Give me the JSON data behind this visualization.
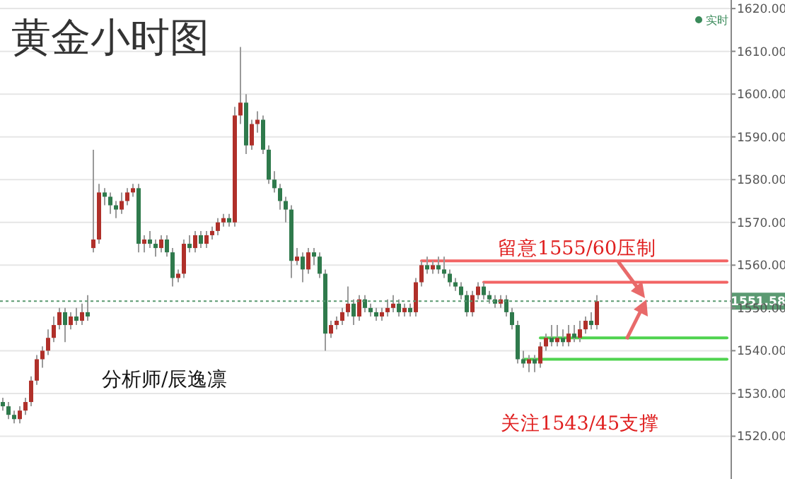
{
  "chart_data": {
    "type": "candlestick",
    "title": "黄金小时图",
    "categories": [
      null,
      null,
      null,
      null,
      null,
      null,
      null,
      null,
      null,
      null,
      null,
      null,
      null,
      null,
      null,
      null,
      null,
      null,
      null,
      null,
      null,
      null,
      null,
      null,
      null,
      null,
      null,
      null,
      null,
      null,
      null,
      null,
      null,
      null,
      null,
      null,
      null,
      null,
      null,
      null,
      null,
      null,
      null,
      null,
      null,
      null,
      null,
      null,
      null,
      null,
      null,
      null,
      null,
      null,
      null,
      null,
      null,
      null,
      null,
      null,
      null,
      null,
      null,
      null,
      null,
      null,
      null,
      null,
      null,
      null,
      null,
      null,
      null,
      null,
      null,
      null,
      null,
      null,
      null,
      null,
      null,
      null,
      null,
      null,
      null,
      null,
      null,
      null,
      null,
      null,
      null,
      null,
      null,
      null,
      null,
      null,
      null,
      null,
      null,
      null,
      null,
      null,
      null,
      null,
      null,
      null,
      null,
      null,
      null,
      null,
      null,
      null,
      null,
      null,
      null,
      null,
      null,
      null,
      null,
      null,
      null,
      null,
      null,
      null,
      null,
      null,
      null,
      null,
      null
    ],
    "ohlc": [
      [
        1528,
        1529,
        1526,
        1527
      ],
      [
        1527,
        1528,
        1524,
        1525
      ],
      [
        1525,
        1526,
        1523,
        1524
      ],
      [
        1524,
        1527,
        1523,
        1526
      ],
      [
        1526,
        1529,
        1525,
        1528
      ],
      [
        1528,
        1534,
        1527,
        1533
      ],
      [
        1533,
        1539,
        1532,
        1538
      ],
      [
        1538,
        1541,
        1536,
        1540
      ],
      [
        1540,
        1545,
        1539,
        1543
      ],
      [
        1543,
        1548,
        1542,
        1546
      ],
      [
        1546,
        1550,
        1545,
        1549
      ],
      [
        1549,
        1550,
        1542,
        1546
      ],
      [
        1546,
        1549,
        1545,
        1548
      ],
      [
        1548,
        1550,
        1546,
        1547
      ],
      [
        1547,
        1551,
        1546,
        1549
      ],
      [
        1549,
        1553,
        1547,
        1548
      ],
      [
        1564,
        1587,
        1563,
        1566
      ],
      [
        1566,
        1579,
        1565,
        1577
      ],
      [
        1577,
        1578,
        1574,
        1576
      ],
      [
        1576,
        1577,
        1572,
        1574
      ],
      [
        1574,
        1575,
        1571,
        1573
      ],
      [
        1573,
        1577,
        1572,
        1575
      ],
      [
        1575,
        1578,
        1574,
        1577
      ],
      [
        1577,
        1579,
        1576,
        1578
      ],
      [
        1578,
        1579,
        1563,
        1565
      ],
      [
        1565,
        1567,
        1563,
        1566
      ],
      [
        1566,
        1568,
        1564,
        1565
      ],
      [
        1565,
        1566,
        1562,
        1564
      ],
      [
        1564,
        1567,
        1563,
        1566
      ],
      [
        1566,
        1567,
        1562,
        1563
      ],
      [
        1563,
        1564,
        1555,
        1557
      ],
      [
        1557,
        1559,
        1556,
        1558
      ],
      [
        1558,
        1566,
        1557,
        1565
      ],
      [
        1565,
        1567,
        1563,
        1564
      ],
      [
        1564,
        1568,
        1563,
        1567
      ],
      [
        1567,
        1568,
        1564,
        1565
      ],
      [
        1565,
        1568,
        1564,
        1567
      ],
      [
        1567,
        1569,
        1566,
        1568
      ],
      [
        1568,
        1571,
        1567,
        1570
      ],
      [
        1570,
        1572,
        1569,
        1571
      ],
      [
        1571,
        1572,
        1569,
        1570
      ],
      [
        1570,
        1597,
        1569,
        1595
      ],
      [
        1595,
        1611,
        1593,
        1598
      ],
      [
        1598,
        1600,
        1586,
        1588
      ],
      [
        1588,
        1594,
        1587,
        1593
      ],
      [
        1593,
        1596,
        1591,
        1594
      ],
      [
        1594,
        1595,
        1586,
        1587
      ],
      [
        1587,
        1588,
        1579,
        1580
      ],
      [
        1580,
        1582,
        1577,
        1578
      ],
      [
        1578,
        1579,
        1573,
        1575
      ],
      [
        1575,
        1576,
        1570,
        1573
      ],
      [
        1573,
        1574,
        1557,
        1561
      ],
      [
        1561,
        1564,
        1560,
        1562
      ],
      [
        1562,
        1563,
        1556,
        1559
      ],
      [
        1559,
        1564,
        1558,
        1563
      ],
      [
        1563,
        1564,
        1560,
        1562
      ],
      [
        1562,
        1563,
        1557,
        1558
      ],
      [
        1558,
        1559,
        1540,
        1544
      ],
      [
        1544,
        1547,
        1543,
        1546
      ],
      [
        1546,
        1548,
        1545,
        1547
      ],
      [
        1547,
        1550,
        1546,
        1549
      ],
      [
        1549,
        1555,
        1548,
        1551
      ],
      [
        1551,
        1552,
        1546,
        1548
      ],
      [
        1548,
        1553,
        1547,
        1552
      ],
      [
        1552,
        1553,
        1549,
        1550
      ],
      [
        1550,
        1551,
        1548,
        1549
      ],
      [
        1549,
        1550,
        1547,
        1548
      ],
      [
        1548,
        1550,
        1547,
        1549
      ],
      [
        1549,
        1552,
        1548,
        1550
      ],
      [
        1550,
        1553,
        1549,
        1551
      ],
      [
        1551,
        1552,
        1548,
        1549
      ],
      [
        1549,
        1551,
        1548,
        1550
      ],
      [
        1550,
        1551,
        1548,
        1549
      ],
      [
        1549,
        1557,
        1548,
        1556
      ],
      [
        1556,
        1561,
        1555,
        1560
      ],
      [
        1560,
        1562,
        1558,
        1559
      ],
      [
        1559,
        1561,
        1558,
        1560
      ],
      [
        1560,
        1562,
        1558,
        1559
      ],
      [
        1559,
        1562,
        1557,
        1558
      ],
      [
        1558,
        1559,
        1555,
        1556
      ],
      [
        1556,
        1557,
        1554,
        1555
      ],
      [
        1555,
        1556,
        1552,
        1553
      ],
      [
        1553,
        1554,
        1548,
        1549
      ],
      [
        1549,
        1554,
        1548,
        1553
      ],
      [
        1553,
        1556,
        1552,
        1555
      ],
      [
        1555,
        1556,
        1552,
        1553
      ],
      [
        1553,
        1554,
        1551,
        1552
      ],
      [
        1552,
        1553,
        1550,
        1551
      ],
      [
        1551,
        1553,
        1550,
        1552
      ],
      [
        1552,
        1553,
        1548,
        1549
      ],
      [
        1549,
        1550,
        1545,
        1546
      ],
      [
        1546,
        1547,
        1537,
        1538
      ],
      [
        1538,
        1540,
        1536,
        1537
      ],
      [
        1537,
        1539,
        1535,
        1538
      ],
      [
        1538,
        1539,
        1535,
        1537
      ],
      [
        1537,
        1542,
        1536,
        1541
      ],
      [
        1541,
        1544,
        1540,
        1543
      ],
      [
        1543,
        1546,
        1541,
        1542
      ],
      [
        1542,
        1546,
        1541,
        1543
      ],
      [
        1543,
        1545,
        1541,
        1542
      ],
      [
        1542,
        1546,
        1541,
        1544
      ],
      [
        1544,
        1546,
        1542,
        1543
      ],
      [
        1543,
        1547,
        1542,
        1545
      ],
      [
        1545,
        1548,
        1544,
        1547
      ],
      [
        1547,
        1549,
        1545,
        1546
      ],
      [
        1546,
        1553,
        1545,
        1551.58
      ],
      null,
      null,
      null,
      null,
      null,
      null,
      null,
      null,
      null,
      null,
      null,
      null,
      null,
      null,
      null,
      null,
      null,
      null,
      null,
      null,
      null,
      null,
      null
    ],
    "series": [
      {
        "type": "line",
        "color": "#f26464",
        "values": [
          null,
          null,
          null,
          null,
          null,
          null,
          null,
          null,
          null,
          null,
          null,
          null,
          null,
          null,
          null,
          null,
          null,
          null,
          null,
          null,
          null,
          null,
          null,
          null,
          null,
          null,
          null,
          null,
          null,
          null,
          null,
          null,
          null,
          null,
          null,
          null,
          null,
          null,
          null,
          null,
          null,
          null,
          null,
          null,
          null,
          null,
          null,
          null,
          null,
          null,
          null,
          null,
          null,
          null,
          null,
          null,
          null,
          null,
          null,
          null,
          null,
          null,
          null,
          null,
          null,
          null,
          null,
          null,
          null,
          null,
          null,
          null,
          null,
          null,
          1561,
          1561,
          1561,
          1561,
          1561,
          1561,
          1561,
          1561,
          1561,
          1561,
          1561,
          1561,
          1561,
          1561,
          1561,
          1561,
          1561,
          1561,
          1561,
          1561,
          1561,
          1561,
          1561,
          1561,
          1561,
          1561,
          1561,
          1561,
          1561,
          1561,
          1561,
          1561,
          1561,
          1561,
          1561,
          1561,
          1561,
          1561,
          1561,
          1561,
          1561,
          1561,
          1561,
          1561,
          1561,
          1561,
          1561,
          1561,
          1561,
          1561,
          1561,
          1561,
          1561,
          1561,
          1561
        ]
      },
      {
        "type": "line",
        "color": "#f26464",
        "values": [
          null,
          null,
          null,
          null,
          null,
          null,
          null,
          null,
          null,
          null,
          null,
          null,
          null,
          null,
          null,
          null,
          null,
          null,
          null,
          null,
          null,
          null,
          null,
          null,
          null,
          null,
          null,
          null,
          null,
          null,
          null,
          null,
          null,
          null,
          null,
          null,
          null,
          null,
          null,
          null,
          null,
          null,
          null,
          null,
          null,
          null,
          null,
          null,
          null,
          null,
          null,
          null,
          null,
          null,
          null,
          null,
          null,
          null,
          null,
          null,
          null,
          null,
          null,
          null,
          null,
          null,
          null,
          null,
          null,
          null,
          null,
          null,
          null,
          null,
          null,
          null,
          null,
          null,
          null,
          null,
          null,
          null,
          null,
          null,
          null,
          1556,
          1556,
          1556,
          1556,
          1556,
          1556,
          1556,
          1556,
          1556,
          1556,
          1556,
          1556,
          1556,
          1556,
          1556,
          1556,
          1556,
          1556,
          1556,
          1556,
          1556,
          1556,
          1556,
          1556,
          1556,
          1556,
          1556,
          1556,
          1556,
          1556,
          1556,
          1556,
          1556,
          1556,
          1556,
          1556,
          1556,
          1556,
          1556,
          1556,
          1556,
          1556,
          1556,
          1556
        ]
      },
      {
        "type": "line",
        "color": "#4fd34f",
        "values": [
          null,
          null,
          null,
          null,
          null,
          null,
          null,
          null,
          null,
          null,
          null,
          null,
          null,
          null,
          null,
          null,
          null,
          null,
          null,
          null,
          null,
          null,
          null,
          null,
          null,
          null,
          null,
          null,
          null,
          null,
          null,
          null,
          null,
          null,
          null,
          null,
          null,
          null,
          null,
          null,
          null,
          null,
          null,
          null,
          null,
          null,
          null,
          null,
          null,
          null,
          null,
          null,
          null,
          null,
          null,
          null,
          null,
          null,
          null,
          null,
          null,
          null,
          null,
          null,
          null,
          null,
          null,
          null,
          null,
          null,
          null,
          null,
          null,
          null,
          null,
          null,
          null,
          null,
          null,
          null,
          null,
          null,
          null,
          null,
          null,
          null,
          null,
          null,
          null,
          null,
          null,
          null,
          null,
          null,
          null,
          1543,
          1543,
          1543,
          1543,
          1543,
          1543,
          1543,
          1543,
          1543,
          1543,
          1543,
          1543,
          1543,
          1543,
          1543,
          1543,
          1543,
          1543,
          1543,
          1543,
          1543,
          1543,
          1543,
          1543,
          1543,
          1543,
          1543,
          1543,
          1543,
          1543,
          1543,
          1543,
          1543,
          1543
        ]
      },
      {
        "type": "line",
        "color": "#4fd34f",
        "values": [
          null,
          null,
          null,
          null,
          null,
          null,
          null,
          null,
          null,
          null,
          null,
          null,
          null,
          null,
          null,
          null,
          null,
          null,
          null,
          null,
          null,
          null,
          null,
          null,
          null,
          null,
          null,
          null,
          null,
          null,
          null,
          null,
          null,
          null,
          null,
          null,
          null,
          null,
          null,
          null,
          null,
          null,
          null,
          null,
          null,
          null,
          null,
          null,
          null,
          null,
          null,
          null,
          null,
          null,
          null,
          null,
          null,
          null,
          null,
          null,
          null,
          null,
          null,
          null,
          null,
          null,
          null,
          null,
          null,
          null,
          null,
          null,
          null,
          null,
          null,
          null,
          null,
          null,
          null,
          null,
          null,
          null,
          null,
          null,
          null,
          null,
          null,
          null,
          null,
          null,
          null,
          null,
          1538,
          1538,
          1538,
          1538,
          1538,
          1538,
          1538,
          1538,
          1538,
          1538,
          1538,
          1538,
          1538,
          1538,
          1538,
          1538,
          1538,
          1538,
          1538,
          1538,
          1538,
          1538,
          1538,
          1538,
          1538,
          1538,
          1538,
          1538,
          1538,
          1538,
          1538,
          1538,
          1538,
          1538,
          1538,
          1538,
          1538
        ]
      }
    ],
    "ylim": [
      1510,
      1622
    ],
    "yticks": [
      {
        "value": 1520,
        "label": "1520.00"
      },
      {
        "value": 1530,
        "label": "1530.00"
      },
      {
        "value": 1540,
        "label": "1540.00"
      },
      {
        "value": 1550,
        "label": "1550.00"
      },
      {
        "value": 1560,
        "label": "1560.00"
      },
      {
        "value": 1570,
        "label": "1570.00"
      },
      {
        "value": 1580,
        "label": "1580.00"
      },
      {
        "value": 1590,
        "label": "1590.00"
      },
      {
        "value": 1600,
        "label": "1600.00"
      },
      {
        "value": 1610,
        "label": "1610.00"
      },
      {
        "value": 1620,
        "label": "1620.00"
      }
    ],
    "tick_labels": "y",
    "grid": "y",
    "ref_lines": [
      {
        "axis": "y",
        "value": 1551.58,
        "label": "1551.58",
        "color": "#5b9a72",
        "line_style": "dotted"
      }
    ],
    "annotations": [
      "实时",
      "留意1555/60压制",
      "关注1543/45支撑",
      "分析师/辰逸凛"
    ]
  }
}
